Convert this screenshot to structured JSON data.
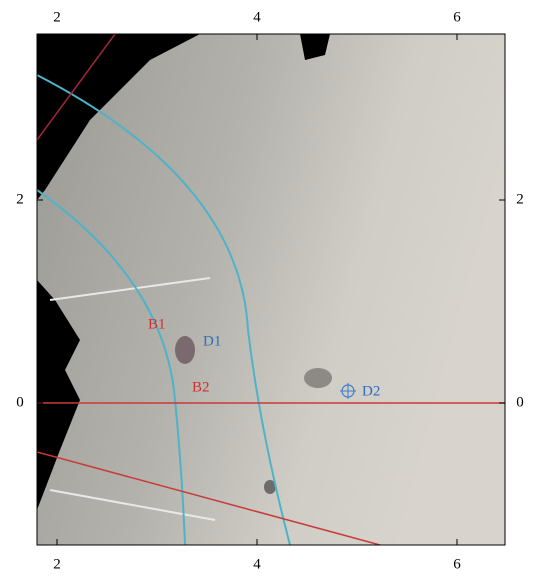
{
  "axes": {
    "xticks": [
      2,
      4,
      6
    ],
    "yticks": [
      2,
      0
    ]
  },
  "annotations": [
    {
      "label": "B1"
    },
    {
      "label": "D1"
    },
    {
      "label": "B2"
    },
    {
      "label": "D2"
    }
  ]
}
